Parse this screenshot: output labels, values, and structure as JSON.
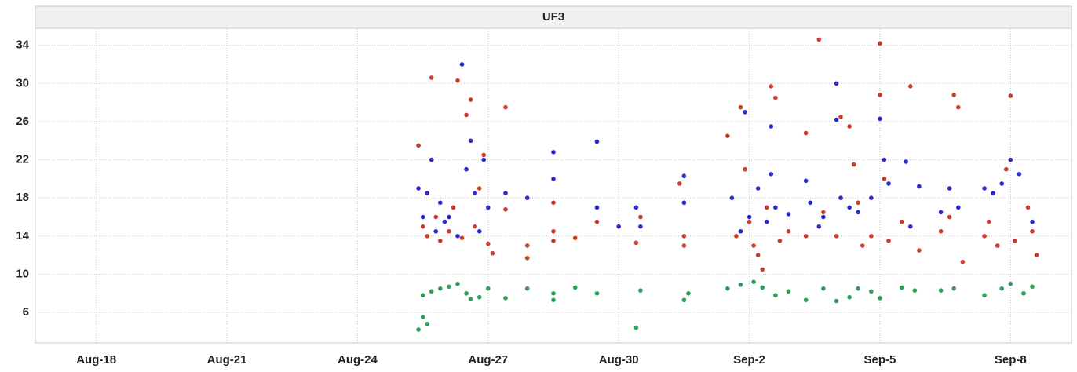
{
  "chart_data": {
    "type": "scatter",
    "title": "UF3",
    "xlim": [
      16.6,
      40.4
    ],
    "xticks": [
      {
        "value": 18,
        "label": "Aug-18"
      },
      {
        "value": 21,
        "label": "Aug-21"
      },
      {
        "value": 24,
        "label": "Aug-24"
      },
      {
        "value": 27,
        "label": "Aug-27"
      },
      {
        "value": 30,
        "label": "Aug-30"
      },
      {
        "value": 33,
        "label": "Sep-2"
      },
      {
        "value": 36,
        "label": "Sep-5"
      },
      {
        "value": 39,
        "label": "Sep-8"
      }
    ],
    "ylim": [
      2.8,
      35.7
    ],
    "yticks": [
      6,
      10,
      14,
      18,
      22,
      26,
      30,
      34
    ],
    "grid": true,
    "series": [
      {
        "color": "#c8402a",
        "x": [
          25.4,
          25.5,
          25.6,
          25.7,
          25.8,
          25.9,
          26.0,
          26.1,
          26.2,
          26.3,
          26.4,
          26.5,
          26.6,
          26.7,
          26.8,
          26.9,
          27.0,
          27.1,
          27.4,
          27.4,
          27.9,
          27.9,
          28.5,
          28.5,
          28.5,
          29.0,
          29.5,
          30.4,
          30.5,
          31.4,
          31.5,
          31.5,
          32.5,
          32.7,
          32.8,
          32.9,
          33.0,
          33.1,
          33.2,
          33.3,
          33.4,
          33.5,
          33.6,
          33.7,
          33.9,
          34.3,
          34.3,
          34.6,
          34.7,
          35.0,
          35.1,
          35.3,
          35.4,
          35.5,
          35.6,
          35.8,
          36.0,
          36.0,
          36.1,
          36.2,
          36.5,
          36.7,
          36.9,
          37.4,
          37.6,
          37.7,
          37.8,
          37.9,
          38.4,
          38.5,
          38.7,
          38.9,
          39.0,
          39.1,
          39.4,
          39.5,
          39.6
        ],
        "values": [
          23.5,
          15,
          14,
          30.6,
          16,
          13.5,
          15.5,
          14.5,
          17,
          30.3,
          13.8,
          26.7,
          28.3,
          15,
          19,
          22.5,
          13.2,
          12.2,
          27.5,
          16.8,
          13,
          11.7,
          17.5,
          14.5,
          13.5,
          13.8,
          15.5,
          13.3,
          16,
          19.5,
          14,
          13,
          24.5,
          14,
          27.5,
          21,
          15.5,
          13,
          12,
          10.5,
          17,
          29.7,
          28.5,
          13.5,
          14.5,
          24.8,
          14,
          34.6,
          16.5,
          14,
          26.5,
          25.5,
          21.5,
          17.5,
          13,
          14,
          34.2,
          28.8,
          20,
          13.5,
          15.5,
          29.7,
          12.5,
          14.5,
          16,
          28.8,
          27.5,
          11.3,
          14,
          15.5,
          13,
          21,
          28.7,
          13.5,
          17,
          14.5,
          12
        ]
      },
      {
        "color": "#2c2cc8",
        "x": [
          25.4,
          25.5,
          25.6,
          25.7,
          25.8,
          25.9,
          26.0,
          26.1,
          26.3,
          26.4,
          26.5,
          26.6,
          26.7,
          26.8,
          26.9,
          27.0,
          27.4,
          27.9,
          28.5,
          28.5,
          29.5,
          29.5,
          30.0,
          30.4,
          30.5,
          31.5,
          31.5,
          32.6,
          32.8,
          32.9,
          33.0,
          33.2,
          33.4,
          33.5,
          33.5,
          33.6,
          33.9,
          34.3,
          34.4,
          34.6,
          34.7,
          35.0,
          35.0,
          35.1,
          35.3,
          35.5,
          35.8,
          36.0,
          36.1,
          36.2,
          36.6,
          36.7,
          36.9,
          37.4,
          37.6,
          37.8,
          38.4,
          38.6,
          38.8,
          39.0,
          39.2,
          39.5
        ],
        "values": [
          19,
          16,
          18.5,
          22,
          14.5,
          17.5,
          15.5,
          16,
          14,
          32,
          21,
          24,
          18.5,
          14.5,
          22,
          17,
          18.5,
          18,
          20,
          22.8,
          23.9,
          17,
          15,
          17,
          15,
          20.3,
          17.5,
          18,
          14.5,
          27,
          16,
          19,
          15.5,
          25.5,
          20.5,
          17,
          16.3,
          19.8,
          17.5,
          15,
          16,
          30,
          26.2,
          18,
          17,
          16.5,
          18,
          26.3,
          22,
          19.5,
          21.8,
          15,
          19.2,
          16.5,
          19,
          17,
          19,
          18.5,
          19.5,
          22,
          20.5,
          15.5
        ]
      },
      {
        "color": "#2ea05a",
        "x": [
          25.4,
          25.5,
          25.6,
          25.5,
          25.7,
          25.9,
          26.1,
          26.3,
          26.5,
          26.6,
          26.8,
          27.0,
          27.4,
          27.9,
          28.5,
          28.5,
          29.0,
          29.5,
          30.4,
          30.5,
          31.5,
          31.6,
          32.5,
          32.8,
          33.1,
          33.3,
          33.6,
          33.9,
          34.3,
          34.7,
          35.0,
          35.3,
          35.5,
          35.8,
          36.0,
          36.5,
          36.8,
          37.4,
          37.7,
          38.4,
          38.8,
          39.0,
          39.3,
          39.5
        ],
        "values": [
          4.2,
          5.5,
          4.8,
          7.8,
          8.2,
          8.5,
          8.7,
          9,
          8,
          7.4,
          7.6,
          8.5,
          7.5,
          8.5,
          8,
          7.3,
          8.6,
          8,
          4.4,
          8.3,
          7.3,
          8,
          8.5,
          8.9,
          9.2,
          8.6,
          7.8,
          8.2,
          7.3,
          8.5,
          7.2,
          7.6,
          8.5,
          8.2,
          7.5,
          8.6,
          8.3,
          8.3,
          8.5,
          7.8,
          8.5,
          9,
          8,
          8.7
        ]
      }
    ]
  }
}
